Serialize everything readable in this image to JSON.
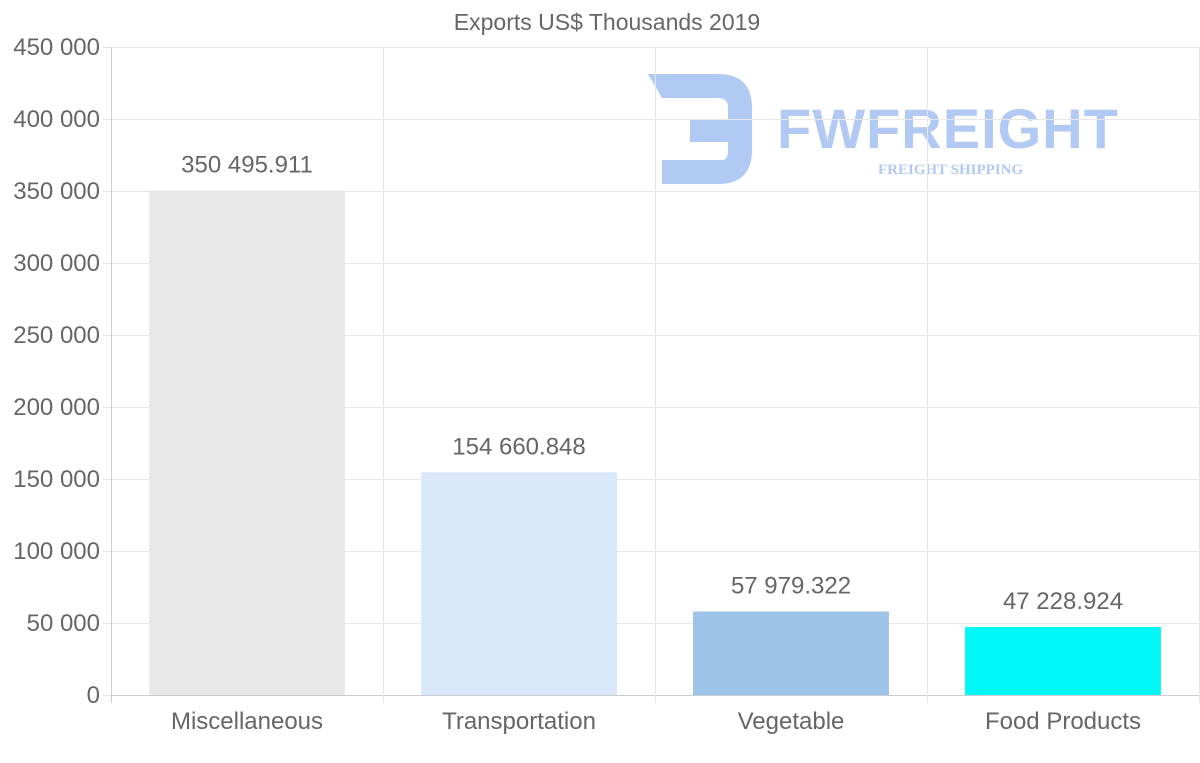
{
  "watermark": {
    "name": "FWFREIGHT",
    "tagline": "FREIGHT SHIPPING",
    "color": "#a9c4f2"
  },
  "chart_data": {
    "type": "bar",
    "title": "Exports US$ Thousands 2019",
    "categories": [
      "Miscellaneous",
      "Transportation",
      "Vegetable",
      "Food Products"
    ],
    "values": [
      350495.911,
      154660.848,
      57979.322,
      47228.924
    ],
    "value_labels": [
      "350 495.911",
      "154 660.848",
      "57 979.322",
      "47 228.924"
    ],
    "colors": [
      "#e8e8e8",
      "#d8e8fa",
      "#9cc4e8",
      "#00f7f7"
    ],
    "xlabel": "",
    "ylabel": "",
    "ylim": [
      0,
      450000
    ],
    "yticks": [
      0,
      50000,
      100000,
      150000,
      200000,
      250000,
      300000,
      350000,
      400000,
      450000
    ],
    "ytick_labels": [
      "0",
      "50 000",
      "100 000",
      "150 000",
      "200 000",
      "250 000",
      "300 000",
      "350 000",
      "400 000",
      "450 000"
    ],
    "grid": true,
    "legend": "none"
  }
}
